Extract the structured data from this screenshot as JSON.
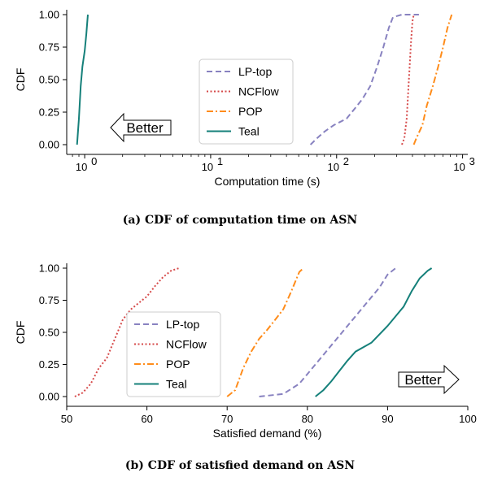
{
  "colors": {
    "LP-top": "#8882c0",
    "NCFlow": "#d64a4a",
    "POP": "#ff8c1a",
    "Teal": "#15807a"
  },
  "chart_data": [
    {
      "type": "line",
      "caption": "(a) CDF of computation time on ASN",
      "xlabel": "Computation time (s)",
      "ylabel": "CDF",
      "xscale": "log",
      "xlim": [
        0.72,
        1100
      ],
      "ylim": [
        0,
        1
      ],
      "xticks": [
        1,
        10,
        100,
        1000
      ],
      "xtick_labels": [
        "10^0",
        "10^1",
        "10^2",
        "10^3"
      ],
      "yticks": [
        0,
        0.25,
        0.5,
        0.75,
        1.0
      ],
      "ytick_labels": [
        "0.00",
        "0.25",
        "0.50",
        "0.75",
        "1.00"
      ],
      "legend": [
        "LP-top",
        "NCFlow",
        "POP",
        "Teal"
      ],
      "legend_position": "center",
      "annotation": "Better",
      "annotation_direction": "left",
      "series": [
        {
          "name": "LP-top",
          "style": "dashed",
          "points": [
            [
              62,
              0
            ],
            [
              70,
              0.05
            ],
            [
              80,
              0.1
            ],
            [
              95,
              0.15
            ],
            [
              120,
              0.2
            ],
            [
              140,
              0.28
            ],
            [
              160,
              0.35
            ],
            [
              185,
              0.45
            ],
            [
              210,
              0.6
            ],
            [
              235,
              0.75
            ],
            [
              260,
              0.9
            ],
            [
              280,
              0.98
            ],
            [
              330,
              1.0
            ],
            [
              400,
              1.0
            ],
            [
              450,
              1.0
            ]
          ]
        },
        {
          "name": "NCFlow",
          "style": "dotted",
          "points": [
            [
              330,
              0
            ],
            [
              345,
              0.05
            ],
            [
              360,
              0.2
            ],
            [
              370,
              0.4
            ],
            [
              380,
              0.6
            ],
            [
              390,
              0.8
            ],
            [
              400,
              0.95
            ],
            [
              410,
              1.0
            ]
          ]
        },
        {
          "name": "POP",
          "style": "dashdot",
          "points": [
            [
              410,
              0
            ],
            [
              430,
              0.05
            ],
            [
              480,
              0.15
            ],
            [
              520,
              0.3
            ],
            [
              580,
              0.45
            ],
            [
              640,
              0.6
            ],
            [
              700,
              0.75
            ],
            [
              760,
              0.9
            ],
            [
              820,
              1.0
            ]
          ]
        },
        {
          "name": "Teal",
          "style": "solid",
          "points": [
            [
              0.87,
              0
            ],
            [
              0.9,
              0.2
            ],
            [
              0.93,
              0.45
            ],
            [
              0.96,
              0.6
            ],
            [
              1.0,
              0.72
            ],
            [
              1.03,
              0.85
            ],
            [
              1.06,
              1.0
            ]
          ]
        }
      ]
    },
    {
      "type": "line",
      "caption": "(b) CDF of satisfied demand on ASN",
      "xlabel": "Satisfied demand (%)",
      "ylabel": "CDF",
      "xlim": [
        50,
        100
      ],
      "ylim": [
        0,
        1
      ],
      "xticks": [
        50,
        60,
        70,
        80,
        90,
        100
      ],
      "xtick_labels": [
        "50",
        "60",
        "70",
        "80",
        "90",
        "100"
      ],
      "yticks": [
        0,
        0.25,
        0.5,
        0.75,
        1.0
      ],
      "ytick_labels": [
        "0.00",
        "0.25",
        "0.50",
        "0.75",
        "1.00"
      ],
      "legend": [
        "LP-top",
        "NCFlow",
        "POP",
        "Teal"
      ],
      "legend_position": "center-left",
      "annotation": "Better",
      "annotation_direction": "right",
      "series": [
        {
          "name": "LP-top",
          "style": "dashed",
          "points": [
            [
              74,
              0
            ],
            [
              77,
              0.02
            ],
            [
              79,
              0.1
            ],
            [
              81,
              0.25
            ],
            [
              83,
              0.4
            ],
            [
              85,
              0.55
            ],
            [
              87,
              0.7
            ],
            [
              89,
              0.85
            ],
            [
              90,
              0.95
            ],
            [
              91,
              1.0
            ]
          ]
        },
        {
          "name": "NCFlow",
          "style": "dotted",
          "points": [
            [
              51,
              0
            ],
            [
              52,
              0.03
            ],
            [
              53,
              0.1
            ],
            [
              54,
              0.22
            ],
            [
              55,
              0.3
            ],
            [
              56,
              0.45
            ],
            [
              57,
              0.6
            ],
            [
              58,
              0.68
            ],
            [
              60,
              0.78
            ],
            [
              61,
              0.86
            ],
            [
              62,
              0.93
            ],
            [
              63,
              0.98
            ],
            [
              64,
              1.0
            ]
          ]
        },
        {
          "name": "POP",
          "style": "dashdot",
          "points": [
            [
              70,
              0
            ],
            [
              71,
              0.05
            ],
            [
              72,
              0.22
            ],
            [
              73,
              0.35
            ],
            [
              74,
              0.45
            ],
            [
              75,
              0.52
            ],
            [
              76,
              0.6
            ],
            [
              77,
              0.68
            ],
            [
              78,
              0.82
            ],
            [
              79,
              0.97
            ],
            [
              79.5,
              1.0
            ]
          ]
        },
        {
          "name": "Teal",
          "style": "solid",
          "points": [
            [
              81,
              0
            ],
            [
              82,
              0.05
            ],
            [
              83,
              0.12
            ],
            [
              84,
              0.2
            ],
            [
              85,
              0.28
            ],
            [
              86,
              0.35
            ],
            [
              88,
              0.42
            ],
            [
              90,
              0.55
            ],
            [
              92,
              0.7
            ],
            [
              93,
              0.82
            ],
            [
              94,
              0.92
            ],
            [
              95,
              0.98
            ],
            [
              95.5,
              1.0
            ]
          ]
        }
      ]
    }
  ]
}
